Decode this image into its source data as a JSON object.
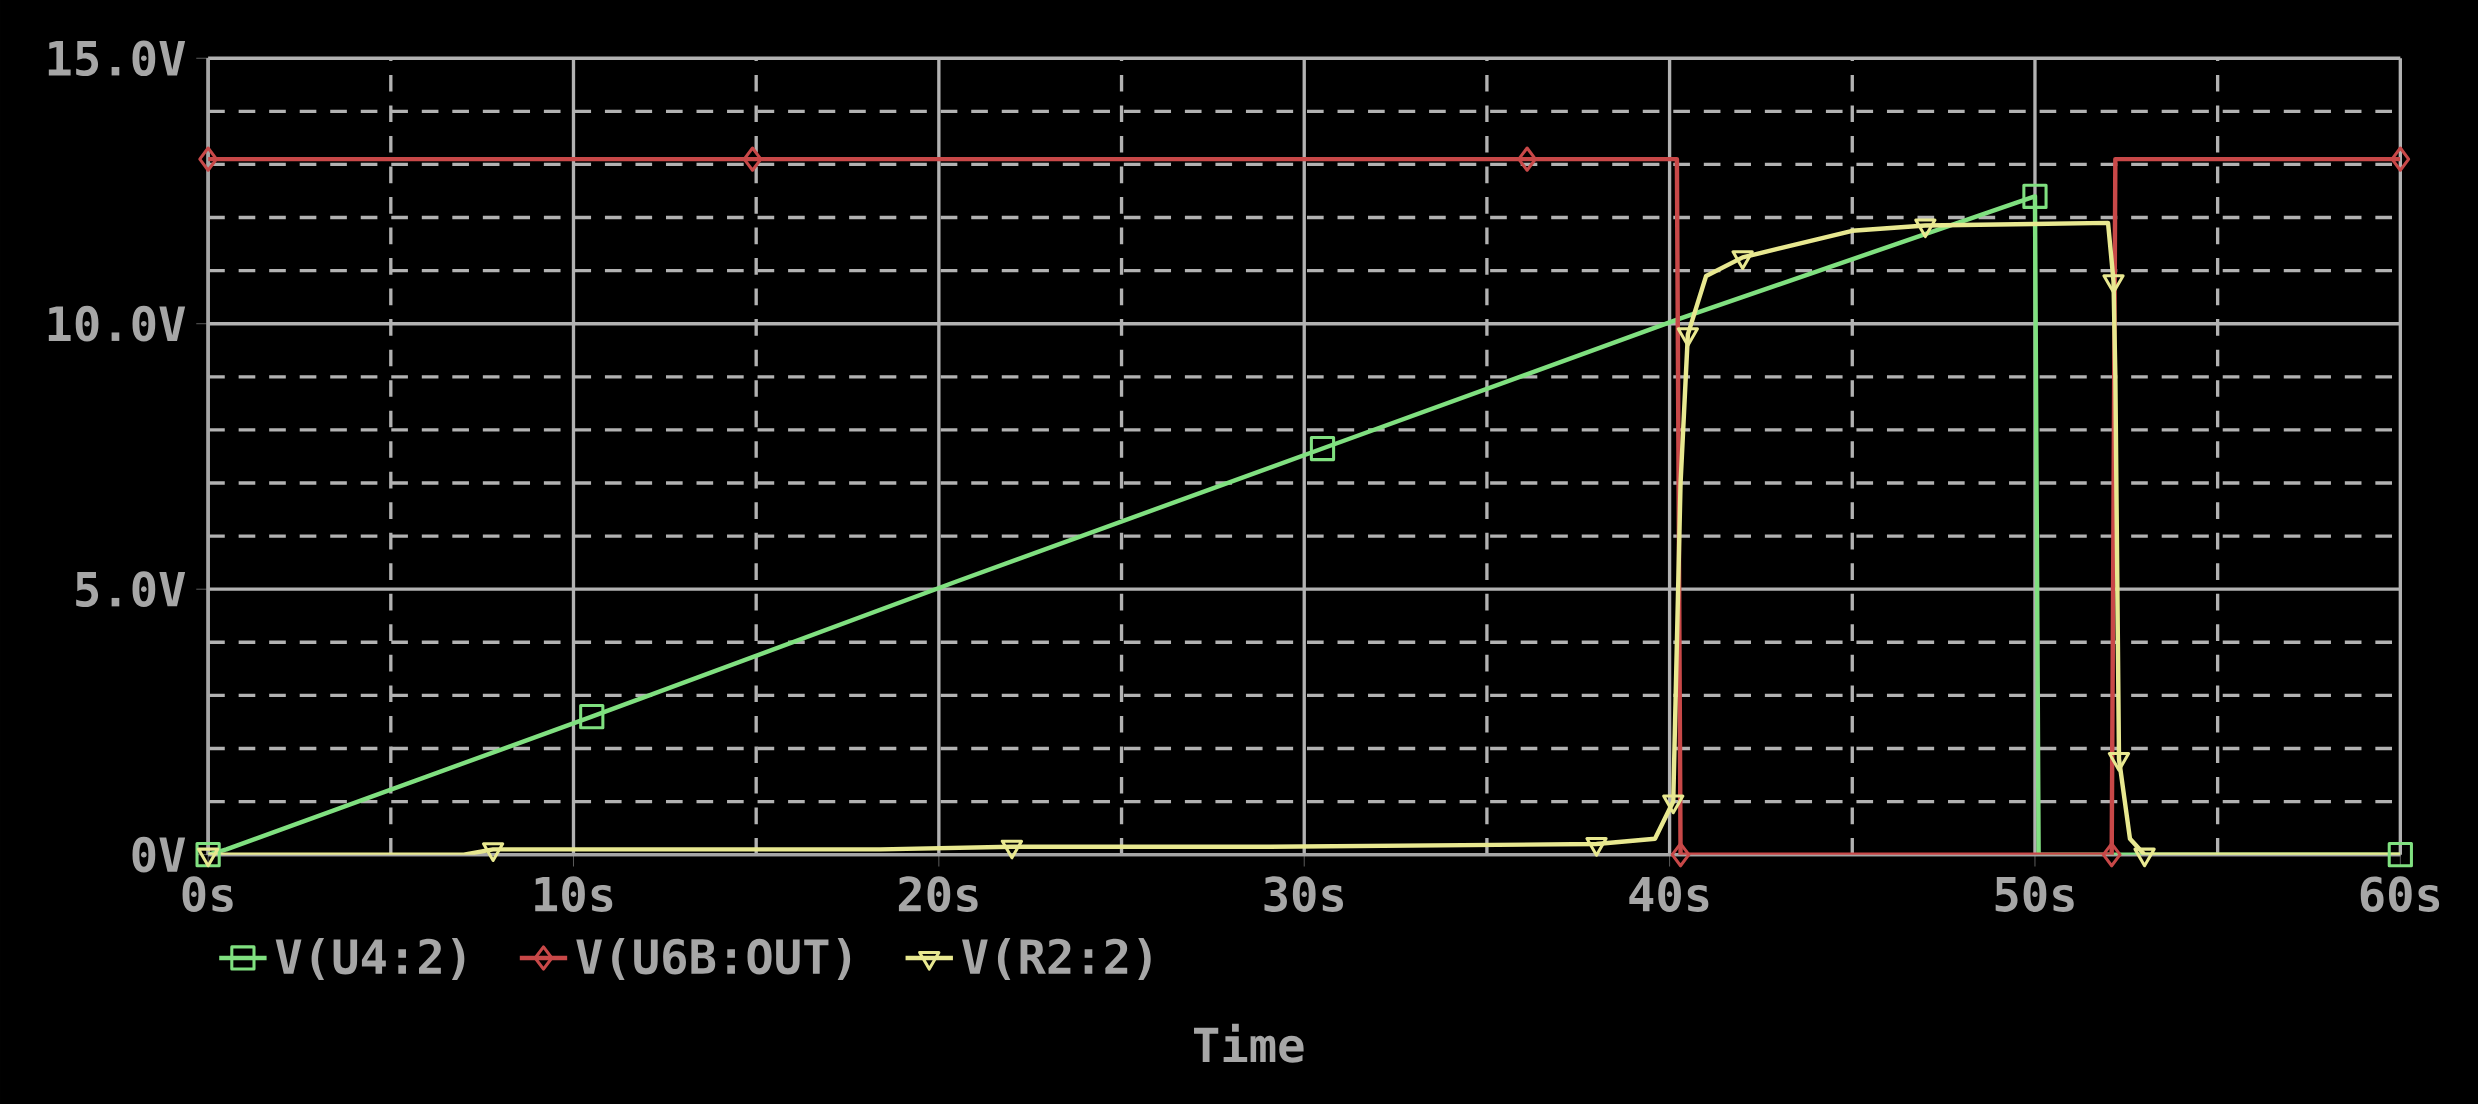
{
  "chart_data": {
    "type": "line",
    "xlabel": "Time",
    "xlim": [
      0,
      60
    ],
    "ylim": [
      0,
      15
    ],
    "xticks": [
      {
        "value": 0,
        "label": "0s"
      },
      {
        "value": 10,
        "label": "10s"
      },
      {
        "value": 20,
        "label": "20s"
      },
      {
        "value": 30,
        "label": "30s"
      },
      {
        "value": 40,
        "label": "40s"
      },
      {
        "value": 50,
        "label": "50s"
      },
      {
        "value": 60,
        "label": "60s"
      }
    ],
    "yticks": [
      {
        "value": 0,
        "label": "0V"
      },
      {
        "value": 5,
        "label": "5.0V"
      },
      {
        "value": 10,
        "label": "10.0V"
      },
      {
        "value": 15,
        "label": "15.0V"
      }
    ],
    "grid": true,
    "legend": "bottom left",
    "series": [
      {
        "name": "V(U4:2)",
        "color": "#80e080",
        "marker": "square",
        "x": [
          0,
          0.5,
          10.5,
          20.5,
          30.5,
          40.3,
          50,
          50.1,
          60
        ],
        "values": [
          0,
          0.1,
          2.6,
          5.15,
          7.65,
          10.1,
          12.4,
          0,
          0
        ]
      },
      {
        "name": "V(U6B:OUT)",
        "color": "#c84848",
        "marker": "diamond",
        "x": [
          0,
          4.3,
          14.9,
          25.5,
          36.1,
          40.2,
          40.3,
          46,
          52.1,
          52.2,
          60
        ],
        "values": [
          13.1,
          13.1,
          13.1,
          13.1,
          13.1,
          13.1,
          0,
          0,
          0,
          13.1,
          13.1
        ]
      },
      {
        "name": "V(R2:2)",
        "color": "#e8e890",
        "marker": "triangle",
        "x": [
          0,
          7,
          7.8,
          18.4,
          22,
          29,
          38,
          39.6,
          40.1,
          40.3,
          40.5,
          41,
          42,
          45,
          47,
          52,
          52.15,
          52.2,
          52.3,
          52.6,
          53,
          60
        ],
        "values": [
          0,
          0,
          0.1,
          0.1,
          0.15,
          0.15,
          0.2,
          0.3,
          1,
          7,
          9.8,
          10.9,
          11.25,
          11.75,
          11.85,
          11.9,
          10.8,
          9,
          1.8,
          0.3,
          0,
          0
        ]
      }
    ]
  }
}
